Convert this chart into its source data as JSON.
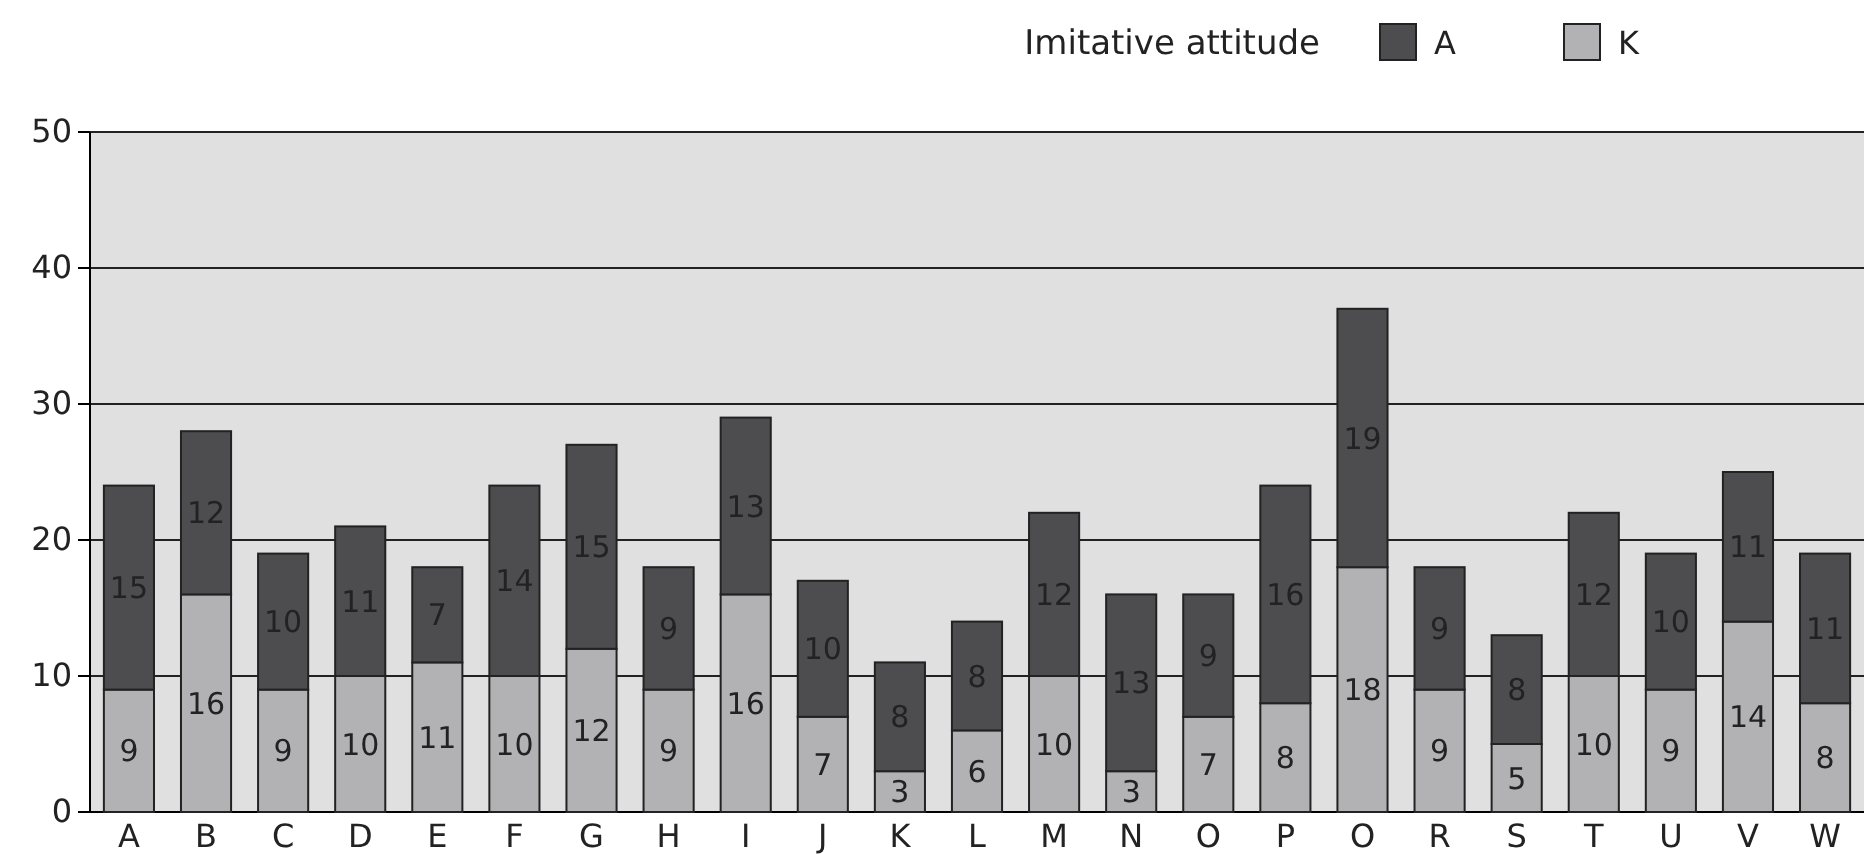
{
  "chart_data": {
    "type": "bar",
    "stacked": true,
    "legend_title": "Imitative attitude",
    "legend": "top right",
    "grid": "y",
    "data_labels": true,
    "categories": [
      "A",
      "B",
      "C",
      "D",
      "E",
      "F",
      "G",
      "H",
      "I",
      "J",
      "K",
      "L",
      "M",
      "N",
      "O",
      "P",
      "O",
      "R",
      "S",
      "T",
      "U",
      "V",
      "W"
    ],
    "series": [
      {
        "name": "K",
        "color": "#b2b2b4",
        "values": [
          9,
          16,
          9,
          10,
          11,
          10,
          12,
          9,
          16,
          7,
          3,
          6,
          10,
          3,
          7,
          8,
          18,
          9,
          5,
          10,
          9,
          14,
          8
        ]
      },
      {
        "name": "A",
        "color": "#4d4d4f",
        "values": [
          15,
          12,
          10,
          11,
          7,
          14,
          15,
          9,
          13,
          10,
          8,
          8,
          12,
          13,
          9,
          16,
          19,
          9,
          8,
          12,
          10,
          11,
          11
        ]
      }
    ],
    "ylim": [
      0,
      50
    ],
    "yticks": [
      0,
      10,
      20,
      30,
      40,
      50
    ]
  }
}
